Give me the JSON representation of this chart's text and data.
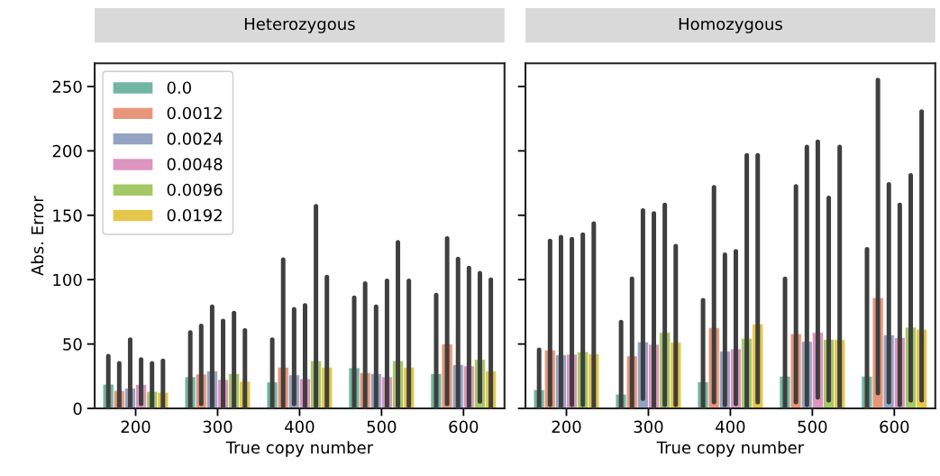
{
  "chart_data": [
    {
      "type": "bar",
      "title": "Heterozygous",
      "xlabel": "True copy number",
      "ylabel": "Abs. Error",
      "categories": [
        "200",
        "300",
        "400",
        "500",
        "600"
      ],
      "ylim": [
        0,
        268
      ],
      "yticks": [
        0,
        50,
        100,
        150,
        200,
        250
      ],
      "grid": false,
      "legend": "top left",
      "series": [
        {
          "name": "0.0",
          "color": "#72b6a1",
          "values": [
            18.8,
            24.5,
            20.5,
            31.5,
            27
          ],
          "errors": [
            [
              0,
              40.7
            ],
            [
              1,
              59
            ],
            [
              1,
              53.4
            ],
            [
              1,
              86
            ],
            [
              1,
              88
            ]
          ]
        },
        {
          "name": "0.0012",
          "color": "#e8967a",
          "values": [
            13.9,
            26.6,
            32,
            27.8,
            50
          ],
          "errors": [
            [
              1,
              35
            ],
            [
              3.5,
              64
            ],
            [
              2,
              115.5
            ],
            [
              1,
              97
            ],
            [
              3.5,
              132
            ]
          ]
        },
        {
          "name": "0.0024",
          "color": "#95a3c3",
          "values": [
            15.8,
            29,
            26,
            27,
            34
          ],
          "errors": [
            [
              1,
              53.4
            ],
            [
              1,
              79
            ],
            [
              3.5,
              77
            ],
            [
              1,
              79
            ],
            [
              1,
              116
            ]
          ]
        },
        {
          "name": "0.0048",
          "color": "#dd94bf",
          "values": [
            18.6,
            22.4,
            23,
            24.5,
            33
          ],
          "errors": [
            [
              3.5,
              38
            ],
            [
              1,
              68
            ],
            [
              2,
              80
            ],
            [
              1,
              99
            ],
            [
              2,
              109
            ]
          ]
        },
        {
          "name": "0.0096",
          "color": "#a4c866",
          "values": [
            13.2,
            27,
            37,
            37,
            38
          ],
          "errors": [
            [
              1,
              35
            ],
            [
              1,
              74
            ],
            [
              2,
              157
            ],
            [
              2,
              129
            ],
            [
              5.4,
              105
            ]
          ]
        },
        {
          "name": "0.0192",
          "color": "#e4c74a",
          "values": [
            12.5,
            21,
            32,
            32,
            29
          ],
          "errors": [
            [
              0.7,
              37
            ],
            [
              1,
              60.5
            ],
            [
              2,
              102
            ],
            [
              2,
              99
            ],
            [
              1,
              100
            ]
          ]
        }
      ]
    },
    {
      "type": "bar",
      "title": "Homozygous",
      "xlabel": "True copy number",
      "categories": [
        "200",
        "300",
        "400",
        "500",
        "600"
      ],
      "ylim": [
        0,
        268
      ],
      "yticks": [
        0,
        50,
        100,
        150,
        200,
        250
      ],
      "tick_labels": "x",
      "grid": false,
      "series": [
        {
          "color": "#72b6a1",
          "values": [
            14.5,
            11,
            20.6,
            25,
            25
          ],
          "errors": [
            [
              0,
              45.6
            ],
            [
              0,
              67
            ],
            [
              0,
              84
            ],
            [
              0,
              100.7
            ],
            [
              0,
              123.6
            ]
          ]
        },
        {
          "color": "#e8967a",
          "values": [
            45.3,
            40.7,
            62.6,
            58,
            86
          ],
          "errors": [
            [
              2.8,
              130
            ],
            [
              1.6,
              100.7
            ],
            [
              5,
              171.7
            ],
            [
              5,
              172.4
            ],
            [
              12,
              255
            ]
          ]
        },
        {
          "color": "#95a3c3",
          "values": [
            41.6,
            51.6,
            44.4,
            52,
            57
          ],
          "errors": [
            [
              1.6,
              133
            ],
            [
              7.5,
              153.7
            ],
            [
              2.8,
              119.4
            ],
            [
              2.8,
              203
            ],
            [
              5,
              174
            ]
          ]
        },
        {
          "color": "#dd94bf",
          "values": [
            42,
            49.8,
            46.3,
            59,
            55
          ],
          "errors": [
            [
              2.8,
              131.5
            ],
            [
              1.6,
              151.4
            ],
            [
              3.5,
              122
            ],
            [
              8.6,
              207
            ],
            [
              2.8,
              158
            ]
          ]
        },
        {
          "color": "#a4c866",
          "values": [
            44,
            59,
            54.4,
            53.5,
            63
          ],
          "errors": [
            [
              2.8,
              135
            ],
            [
              2.8,
              158
            ],
            [
              1,
              196.5
            ],
            [
              6.3,
              163.5
            ],
            [
              6.3,
              181
            ]
          ]
        },
        {
          "color": "#e4c74a",
          "values": [
            42.3,
            51.4,
            65.4,
            53.5,
            61.5
          ],
          "errors": [
            [
              0,
              143.5
            ],
            [
              2.8,
              126
            ],
            [
              5,
              196.5
            ],
            [
              1.6,
              203
            ],
            [
              6.3,
              230.6
            ]
          ]
        }
      ]
    }
  ]
}
